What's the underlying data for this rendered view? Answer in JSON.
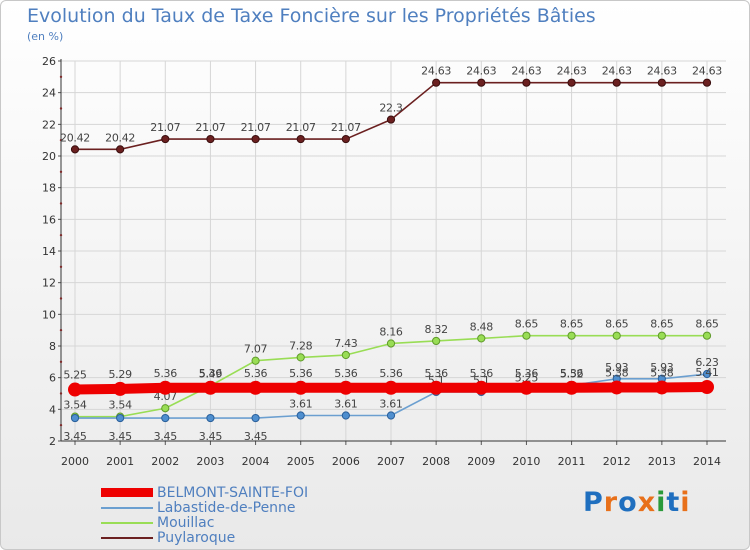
{
  "chart_data": {
    "type": "line",
    "title": "Evolution du Taux de Taxe Foncière sur les Propriétés Bâties",
    "subtitle": "(en %)",
    "ylim": [
      2,
      26
    ],
    "yticks": [
      2,
      4,
      6,
      8,
      10,
      12,
      14,
      16,
      18,
      20,
      22,
      24,
      26
    ],
    "x": [
      "2000",
      "2001",
      "2002",
      "2003",
      "2004",
      "2005",
      "2006",
      "2007",
      "2008",
      "2009",
      "2010",
      "2011",
      "2012",
      "2013",
      "2014"
    ],
    "grid": true,
    "legend_position": "bottom-left",
    "series": [
      {
        "name": "Puylaroque",
        "color": "#6b2020",
        "values": [
          20.42,
          20.42,
          21.07,
          21.07,
          21.07,
          21.07,
          21.07,
          22.3,
          24.63,
          24.63,
          24.63,
          24.63,
          24.63,
          24.63,
          24.63
        ],
        "labels": [
          "20.42",
          "20.42",
          "21.07",
          "21.07",
          "21.07",
          "21.07",
          "21.07",
          "22.3",
          "24.63",
          "24.63",
          "24.63",
          "24.63",
          "24.63",
          "24.63",
          "24.63"
        ]
      },
      {
        "name": "Mouillac",
        "color": "#99dd55",
        "values": [
          3.54,
          3.54,
          4.07,
          5.49,
          7.07,
          7.28,
          7.43,
          8.16,
          8.32,
          8.48,
          8.65,
          8.65,
          8.65,
          8.65,
          8.65
        ],
        "labels": [
          "3.54",
          "3.54",
          "4.07",
          "5.49",
          "7.07",
          "7.28",
          "7.43",
          "8.16",
          "8.32",
          "8.48",
          "8.65",
          "8.65",
          "8.65",
          "8.65",
          "8.65"
        ]
      },
      {
        "name": "Labastide-de-Penne",
        "color": "#6b9fd0",
        "values": [
          3.45,
          3.45,
          3.45,
          3.45,
          3.45,
          3.61,
          3.61,
          3.61,
          5.1,
          5.1,
          5.25,
          5.52,
          5.93,
          5.93,
          6.23
        ],
        "labels": [
          "3.45",
          "3.45",
          "3.45",
          "3.45",
          "3.45",
          "3.61",
          "3.61",
          "3.61",
          "5.1",
          "5.1",
          "5.25",
          "5.52",
          "5.93",
          "5.93",
          "6.23"
        ]
      },
      {
        "name": "BELMONT-SAINTE-FOI",
        "color": "#ee0000",
        "values": [
          5.25,
          5.29,
          5.36,
          5.36,
          5.36,
          5.36,
          5.36,
          5.36,
          5.36,
          5.36,
          5.36,
          5.36,
          5.38,
          5.38,
          5.41
        ],
        "labels": [
          "5.25",
          "5.29",
          "5.36",
          "5.36",
          "5.36",
          "5.36",
          "5.36",
          "5.36",
          "5.36",
          "5.36",
          "5.36",
          "5.36",
          "5.38",
          "5.38",
          "5.41"
        ]
      }
    ],
    "legend": [
      "BELMONT-SAINTE-FOI",
      "Labastide-de-Penne",
      "Mouillac",
      "Puylaroque"
    ]
  },
  "logo": {
    "text": "Proxiti",
    "colors": [
      "#1f6fbf",
      "#e8701a",
      "#1f6fbf",
      "#e8701a",
      "#2a9a3a",
      "#1f6fbf",
      "#e8701a"
    ]
  }
}
